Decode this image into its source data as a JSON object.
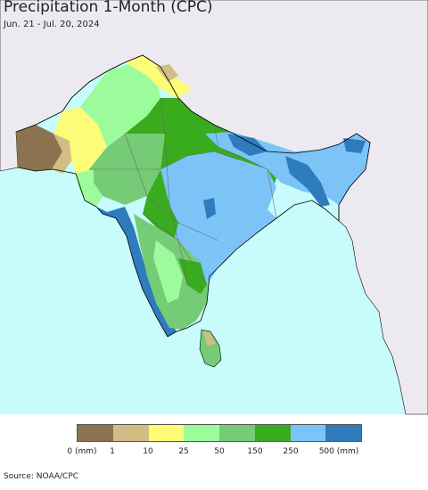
{
  "header": {
    "title": "Precipitation 1-Month (CPC)",
    "subtitle": "Jun. 21 - Jul. 20, 2024"
  },
  "map": {
    "region": "South Asia",
    "colors": {
      "ocean": "#c8fcfc",
      "land_outside": "#eceaf0",
      "border": "#000000"
    }
  },
  "legend": {
    "colors": [
      "#8c7350",
      "#d2bd84",
      "#fcfc78",
      "#9cfc9c",
      "#76cc76",
      "#38ac1c",
      "#7cc4f8",
      "#2e7cbc"
    ],
    "labels": [
      "0 (mm)",
      "1",
      "10",
      "25",
      "50",
      "150",
      "250",
      "500 (mm)"
    ]
  },
  "footer": {
    "source": "Source: NOAA/CPC"
  }
}
